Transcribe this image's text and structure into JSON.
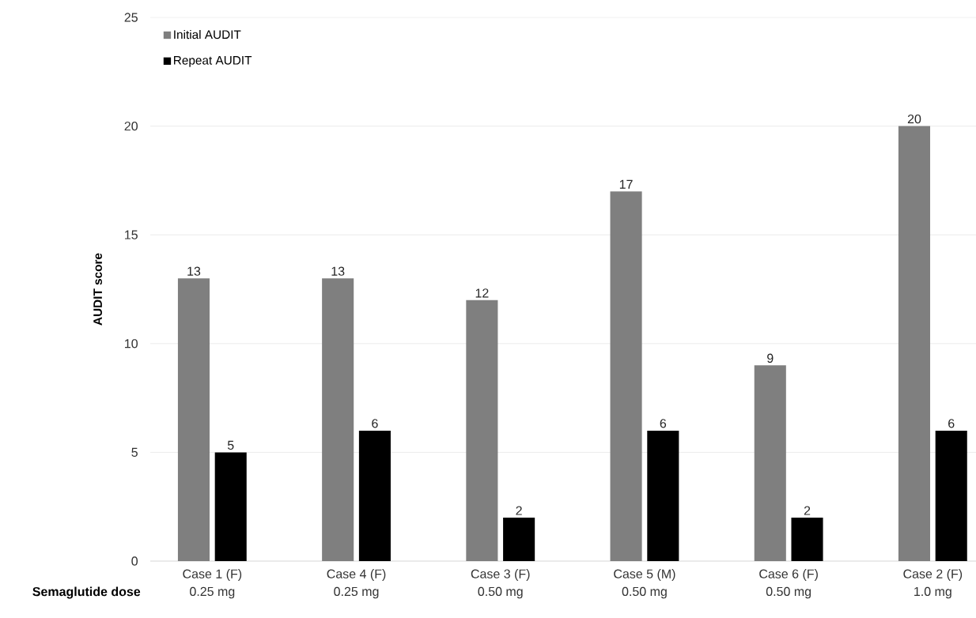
{
  "chart_data": {
    "type": "bar",
    "ylabel": "AUDIT score",
    "categories": [
      "Case 1 (F)",
      "Case 4 (F)",
      "Case 3 (F)",
      "Case 5 (M)",
      "Case 6 (F)",
      "Case 2 (F)"
    ],
    "series": [
      {
        "name": "Initial AUDIT",
        "color": "#7f7f7f",
        "values": [
          13,
          13,
          12,
          17,
          9,
          20
        ]
      },
      {
        "name": "Repeat AUDIT",
        "color": "#000000",
        "values": [
          5,
          6,
          2,
          6,
          2,
          6
        ]
      }
    ],
    "ylim": [
      0,
      25
    ],
    "yticks": [
      0,
      5,
      10,
      15,
      20,
      25
    ],
    "grid": "y",
    "legend": "top left",
    "data_labels": true,
    "annotations": [
      "Semaglutide dose",
      "0.25 mg",
      "0.25 mg",
      "0.50 mg",
      "0.50 mg",
      "0.50 mg",
      "1.0 mg"
    ]
  }
}
